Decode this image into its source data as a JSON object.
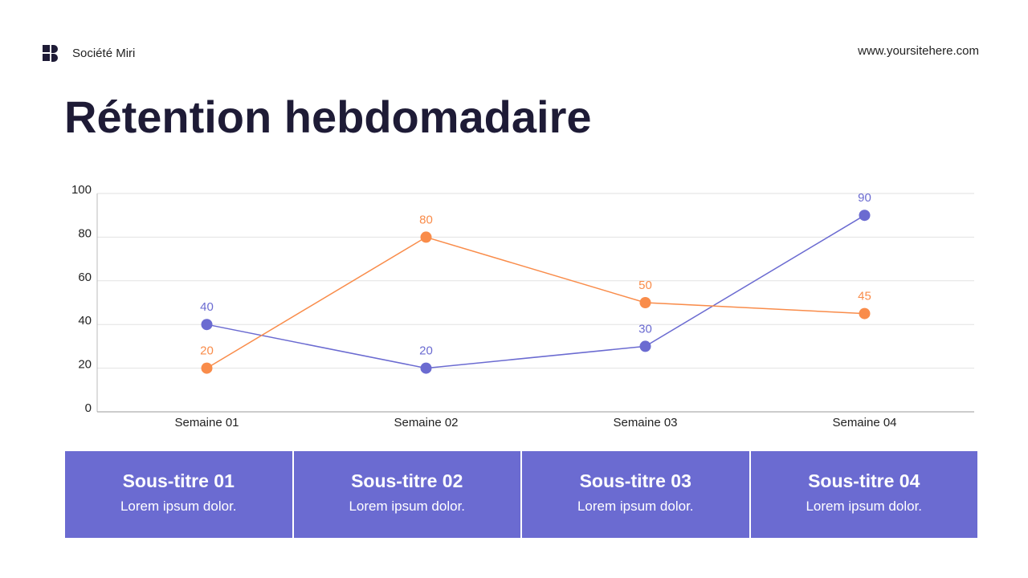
{
  "header": {
    "company": "Société Miri",
    "website": "www.yoursitehere.com"
  },
  "chart_data": {
    "type": "line",
    "title": "Rétention hebdomadaire",
    "categories": [
      "Semaine 01",
      "Semaine 02",
      "Semaine 03",
      "Semaine 04"
    ],
    "series": [
      {
        "color": "#6b6bd1",
        "values": [
          40,
          20,
          30,
          90
        ]
      },
      {
        "color": "#f98c4a",
        "values": [
          20,
          80,
          50,
          45
        ]
      }
    ],
    "ylim": [
      0,
      100
    ],
    "yticks": [
      0,
      20,
      40,
      60,
      80,
      100
    ],
    "grid": true
  },
  "cards": [
    {
      "title": "Sous-titre 01",
      "text": "Lorem ipsum dolor."
    },
    {
      "title": "Sous-titre 02",
      "text": "Lorem ipsum dolor."
    },
    {
      "title": "Sous-titre 03",
      "text": "Lorem ipsum dolor."
    },
    {
      "title": "Sous-titre 04",
      "text": "Lorem ipsum dolor."
    }
  ]
}
